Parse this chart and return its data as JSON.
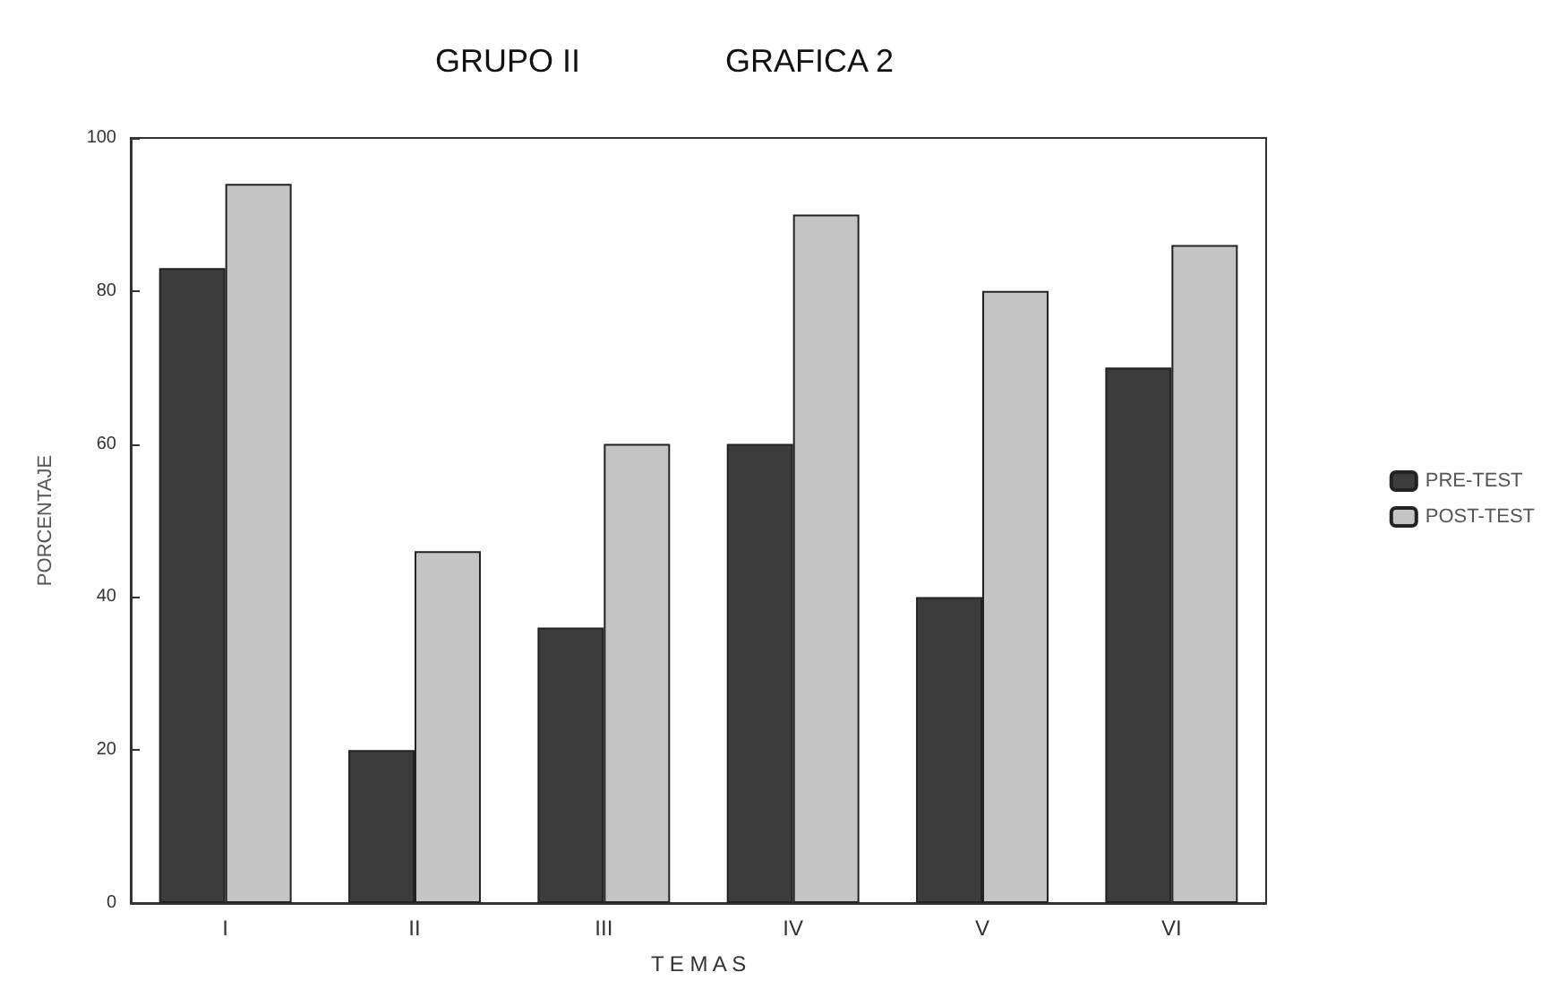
{
  "chart_data": {
    "type": "bar",
    "title": "GRUPO II",
    "subtitle": "GRAFICA 2",
    "xlabel": "T E M A S",
    "ylabel": "PORCENTAJE",
    "categories": [
      "I",
      "II",
      "III",
      "IV",
      "V",
      "VI"
    ],
    "series": [
      {
        "name": "PRE-TEST",
        "color": "#3c3c3c",
        "values": [
          83,
          20,
          36,
          60,
          40,
          70
        ]
      },
      {
        "name": "POST-TEST",
        "color": "#c4c4c4",
        "values": [
          94,
          46,
          60,
          90,
          80,
          86
        ]
      }
    ],
    "ylim": [
      0,
      100
    ],
    "yticks": [
      0,
      20,
      40,
      60,
      80,
      100
    ],
    "grid": false,
    "legend": "right"
  }
}
